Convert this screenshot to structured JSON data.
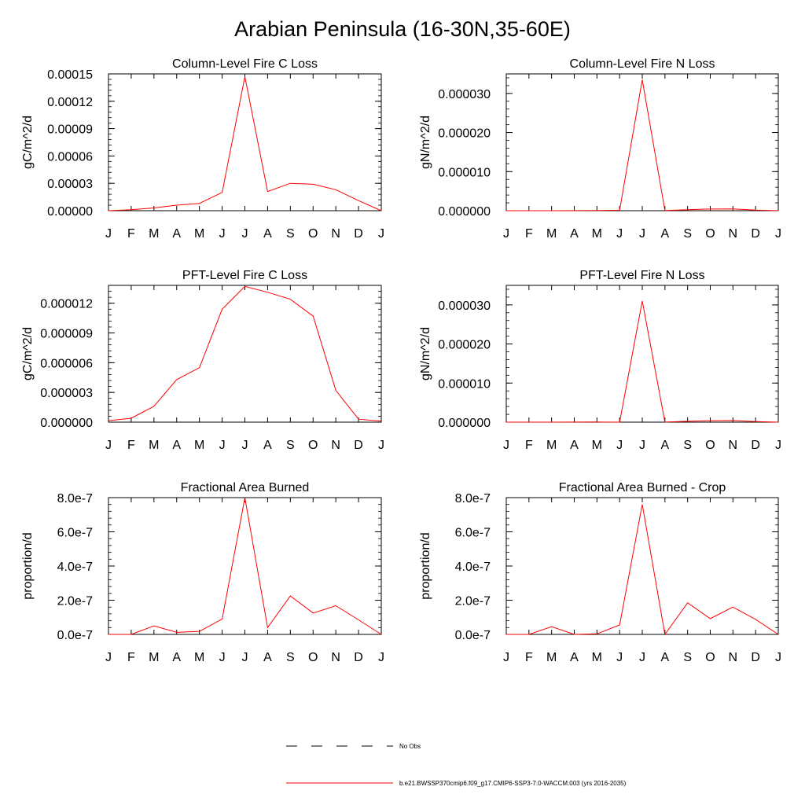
{
  "title": "Arabian Peninsula (16-30N,35-60E)",
  "x_tick_labels": [
    "J",
    "F",
    "M",
    "A",
    "M",
    "J",
    "J",
    "A",
    "S",
    "O",
    "N",
    "D",
    "J"
  ],
  "colors": {
    "series": "#ff0000",
    "axis": "#000000",
    "background": "#ffffff"
  },
  "chart_data": [
    {
      "type": "line",
      "title": "Column-Level Fire C Loss",
      "ylabel": "gC/m^2/d",
      "ylim": [
        0,
        0.00015
      ],
      "yticks": [
        0,
        3e-05,
        6e-05,
        9e-05,
        0.00012,
        0.00015
      ],
      "ytick_labels": [
        "0.00000",
        "0.00003",
        "0.00006",
        "0.00009",
        "0.00012",
        "0.00015"
      ],
      "x": [
        "J",
        "F",
        "M",
        "A",
        "M",
        "J",
        "J",
        "A",
        "S",
        "O",
        "N",
        "D",
        "J"
      ],
      "values": [
        0.0,
        1e-06,
        3e-06,
        6e-06,
        8e-06,
        2e-05,
        0.000147,
        2.1e-05,
        3e-05,
        2.9e-05,
        2.3e-05,
        1.1e-05,
        0.0
      ]
    },
    {
      "type": "line",
      "title": "Column-Level Fire N Loss",
      "ylabel": "gN/m^2/d",
      "ylim": [
        0,
        3.5e-05
      ],
      "yticks": [
        0,
        1e-05,
        2e-05,
        3e-05
      ],
      "ytick_labels": [
        "0.000000",
        "0.000010",
        "0.000020",
        "0.000030"
      ],
      "x": [
        "J",
        "F",
        "M",
        "A",
        "M",
        "J",
        "J",
        "A",
        "S",
        "O",
        "N",
        "D",
        "J"
      ],
      "values": [
        0.0,
        0.0,
        0.0,
        2e-08,
        5e-08,
        1.2e-07,
        3.35e-05,
        5e-08,
        2.6e-07,
        4.2e-07,
        4.6e-07,
        1.7e-07,
        0.0
      ]
    },
    {
      "type": "line",
      "title": "PFT-Level Fire C Loss",
      "ylabel": "gC/m^2/d",
      "ylim": [
        0,
        1.38e-05
      ],
      "yticks": [
        0,
        3e-06,
        6e-06,
        9e-06,
        1.2e-05
      ],
      "ytick_labels": [
        "0.000000",
        "0.000003",
        "0.000006",
        "0.000009",
        "0.000012"
      ],
      "x": [
        "J",
        "F",
        "M",
        "A",
        "M",
        "J",
        "J",
        "A",
        "S",
        "O",
        "N",
        "D",
        "J"
      ],
      "values": [
        1.5e-07,
        4e-07,
        1.6e-06,
        4.3e-06,
        5.5e-06,
        1.14e-05,
        1.37e-05,
        1.31e-05,
        1.24e-05,
        1.07e-05,
        3.2e-06,
        3e-07,
        1e-07
      ]
    },
    {
      "type": "line",
      "title": "PFT-Level Fire N Loss",
      "ylabel": "gN/m^2/d",
      "ylim": [
        0,
        3.5e-05
      ],
      "yticks": [
        0,
        1e-05,
        2e-05,
        3e-05
      ],
      "ytick_labels": [
        "0.000000",
        "0.000010",
        "0.000020",
        "0.000030"
      ],
      "x": [
        "J",
        "F",
        "M",
        "A",
        "M",
        "J",
        "J",
        "A",
        "S",
        "O",
        "N",
        "D",
        "J"
      ],
      "values": [
        0.0,
        0.0,
        0.0,
        2e-08,
        5e-08,
        1e-08,
        3.1e-05,
        3e-08,
        2.2e-07,
        3.9e-07,
        4.2e-07,
        1.6e-07,
        0.0
      ]
    },
    {
      "type": "line",
      "title": "Fractional Area Burned",
      "ylabel": "proportion/d",
      "ylim": [
        0,
        8e-07
      ],
      "yticks": [
        0,
        2e-07,
        4e-07,
        6e-07,
        8e-07
      ],
      "ytick_labels": [
        "0.0e-7",
        "2.0e-7",
        "4.0e-7",
        "6.0e-7",
        "8.0e-7"
      ],
      "x": [
        "J",
        "F",
        "M",
        "A",
        "M",
        "J",
        "J",
        "A",
        "S",
        "O",
        "N",
        "D",
        "J"
      ],
      "values": [
        0.0,
        0.0,
        5e-08,
        1.2e-08,
        1.8e-08,
        9e-08,
        8e-07,
        4e-08,
        2.25e-07,
        1.25e-07,
        1.68e-07,
        8.5e-08,
        0.0
      ]
    },
    {
      "type": "line",
      "title": "Fractional Area Burned - Crop",
      "ylabel": "proportion/d",
      "ylim": [
        0,
        8e-07
      ],
      "yticks": [
        0,
        2e-07,
        4e-07,
        6e-07,
        8e-07
      ],
      "ytick_labels": [
        "0.0e-7",
        "2.0e-7",
        "4.0e-7",
        "6.0e-7",
        "8.0e-7"
      ],
      "x": [
        "J",
        "F",
        "M",
        "A",
        "M",
        "J",
        "J",
        "A",
        "S",
        "O",
        "N",
        "D",
        "J"
      ],
      "values": [
        0.0,
        0.0,
        4.5e-08,
        0.0,
        3e-09,
        5.5e-08,
        7.6e-07,
        0.0,
        1.85e-07,
        9.2e-08,
        1.6e-07,
        8.8e-08,
        0.0
      ]
    }
  ],
  "legend": {
    "entries": [
      {
        "label": "No Obs",
        "style": "dashed",
        "color": "#000000"
      },
      {
        "label": "b.e21.BWSSP370cmip6.f09_g17.CMIP6-SSP3-7.0-WACCM.003 (yrs 2016-2035)",
        "style": "solid",
        "color": "#ff0000"
      }
    ]
  }
}
